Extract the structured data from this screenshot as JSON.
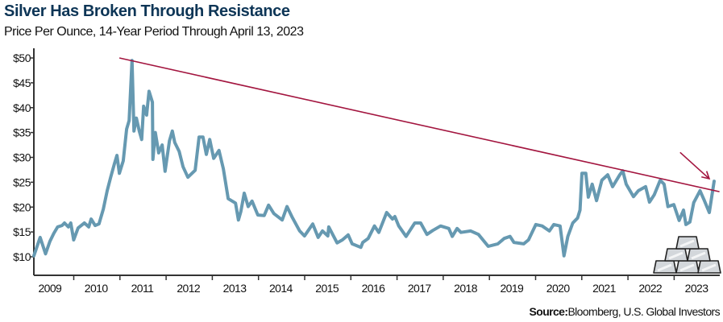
{
  "chart_data": {
    "type": "line",
    "title": "Silver Has Broken Through Resistance",
    "subtitle": "Price Per Ounce, 14-Year Period Through April 13, 2023",
    "xlabel": "",
    "ylabel": "",
    "source_label": "Source:",
    "source_text": "Bloomberg, U.S. Global Investors",
    "x_domain": [
      2009.28,
      2023.28
    ],
    "ylim": [
      9,
      52
    ],
    "y_ticks": [
      10,
      15,
      20,
      25,
      30,
      35,
      40,
      45,
      50
    ],
    "y_tick_labels": [
      "$10",
      "$15",
      "$20",
      "$25",
      "$30",
      "$35",
      "$40",
      "$45",
      "$50"
    ],
    "x_tick_labels": [
      "2009",
      "2010",
      "2011",
      "2012",
      "2013",
      "2014",
      "2015",
      "2016",
      "2017",
      "2018",
      "2019",
      "2020",
      "2021",
      "2022",
      "2023"
    ],
    "grid": false,
    "colors": {
      "series": "#6699b1",
      "trendline": "#a3153f",
      "title": "#0d3556"
    },
    "series": [
      {
        "name": "Silver price (USD/oz)",
        "x": [
          2009.28,
          2009.41,
          2009.52,
          2009.61,
          2009.69,
          2009.77,
          2009.86,
          2009.91,
          2009.99,
          2010.04,
          2010.1,
          2010.19,
          2010.32,
          2010.41,
          2010.46,
          2010.54,
          2010.62,
          2010.71,
          2010.79,
          2010.86,
          2010.94,
          2010.99,
          2011.04,
          2011.12,
          2011.19,
          2011.24,
          2011.3,
          2011.34,
          2011.39,
          2011.45,
          2011.5,
          2011.54,
          2011.6,
          2011.65,
          2011.72,
          2011.73,
          2011.78,
          2011.85,
          2011.92,
          2011.98,
          2012.07,
          2012.13,
          2012.18,
          2012.27,
          2012.35,
          2012.45,
          2012.6,
          2012.68,
          2012.76,
          2012.83,
          2012.9,
          2012.98,
          2013.09,
          2013.18,
          2013.28,
          2013.43,
          2013.49,
          2013.54,
          2013.61,
          2013.69,
          2013.77,
          2013.89,
          2014.02,
          2014.11,
          2014.22,
          2014.39,
          2014.49,
          2014.6,
          2014.75,
          2014.85,
          2015.02,
          2015.13,
          2015.22,
          2015.33,
          2015.35,
          2015.52,
          2015.63,
          2015.75,
          2015.83,
          2016.01,
          2016.05,
          2016.16,
          2016.29,
          2016.38,
          2016.54,
          2016.66,
          2016.71,
          2016.79,
          2016.94,
          2017.12,
          2017.24,
          2017.37,
          2017.49,
          2017.65,
          2017.82,
          2017.89,
          2017.99,
          2018.07,
          2018.27,
          2018.43,
          2018.63,
          2018.83,
          2018.96,
          2019.08,
          2019.16,
          2019.36,
          2019.46,
          2019.61,
          2019.74,
          2019.89,
          2019.98,
          2020.11,
          2020.19,
          2020.27,
          2020.37,
          2020.47,
          2020.52,
          2020.56,
          2020.64,
          2020.69,
          2020.77,
          2020.86,
          2020.97,
          2021.09,
          2021.19,
          2021.34,
          2021.4,
          2021.47,
          2021.62,
          2021.72,
          2021.87,
          2021.95,
          2022.05,
          2022.17,
          2022.25,
          2022.33,
          2022.45,
          2022.56,
          2022.65,
          2022.7,
          2022.78,
          2022.86,
          2022.99,
          2023.08,
          2023.18,
          2023.28
        ],
        "values": [
          10.2,
          13.9,
          10.6,
          13.1,
          14.7,
          16.0,
          16.3,
          16.8,
          16.0,
          16.8,
          13.4,
          15.8,
          16.8,
          16.0,
          17.6,
          16.3,
          16.6,
          19.6,
          23.3,
          26.0,
          28.8,
          30.4,
          26.8,
          29.3,
          35.7,
          37.4,
          49.5,
          35.3,
          37.9,
          35.3,
          33.6,
          40.3,
          38.5,
          43.3,
          41.1,
          29.6,
          35.0,
          30.9,
          32.5,
          27.2,
          33.3,
          35.3,
          33.0,
          31.2,
          28.1,
          26.0,
          27.4,
          34.1,
          34.1,
          30.6,
          33.6,
          29.8,
          31.4,
          27.7,
          21.7,
          20.8,
          17.4,
          19.1,
          22.8,
          20.1,
          21.2,
          18.4,
          18.3,
          20.4,
          18.7,
          17.4,
          20.1,
          17.9,
          15.2,
          14.2,
          16.6,
          13.9,
          15.2,
          14.2,
          16.0,
          12.8,
          13.4,
          14.4,
          12.6,
          11.9,
          12.9,
          13.7,
          16.2,
          14.9,
          18.9,
          17.6,
          18.1,
          16.2,
          14.1,
          16.8,
          16.8,
          14.5,
          15.3,
          16.2,
          15.7,
          14.1,
          15.7,
          14.9,
          15.2,
          14.5,
          12.1,
          12.6,
          13.7,
          14.1,
          12.9,
          12.6,
          13.4,
          16.5,
          16.2,
          15.2,
          16.5,
          16.2,
          10.2,
          14.1,
          16.8,
          17.8,
          19.4,
          26.8,
          26.8,
          22.0,
          24.6,
          21.3,
          25.4,
          26.5,
          24.1,
          26.5,
          27.3,
          24.6,
          22.1,
          23.3,
          24.1,
          21.0,
          22.5,
          25.4,
          24.6,
          20.1,
          20.5,
          17.3,
          19.4,
          16.5,
          17.0,
          20.9,
          23.3,
          21.3,
          18.9,
          25.2
        ]
      }
    ],
    "annotations": {
      "resistance_line": {
        "x": [
          2011.04,
          2023.39
        ],
        "y": [
          50.0,
          23.1
        ]
      },
      "arrow": {
        "x": [
          2022.58,
          2023.18
        ],
        "y": [
          31.0,
          25.7
        ]
      }
    }
  }
}
